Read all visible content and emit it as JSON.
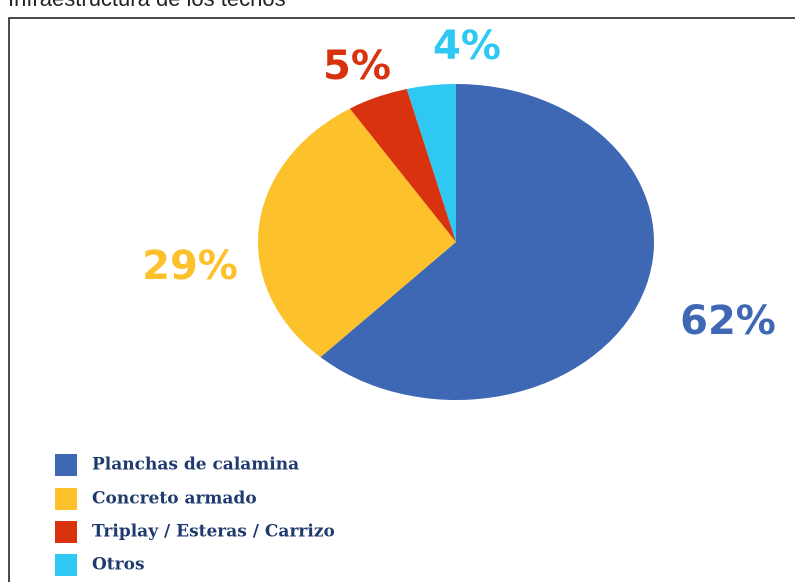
{
  "chart_data": {
    "type": "pie",
    "title": "Infraestructura de los techos",
    "categories": [
      "Planchas de calamina",
      "Concreto armado",
      "Triplay / Esteras / Carrizo",
      "Otros"
    ],
    "values": [
      62,
      29,
      5,
      4
    ],
    "value_labels": [
      "62%",
      "29%",
      "5%",
      "4%"
    ],
    "colors": [
      "#3e67b4",
      "#fcc12b",
      "#d8320f",
      "#2ec8f2"
    ],
    "legend": "bottom-left"
  }
}
